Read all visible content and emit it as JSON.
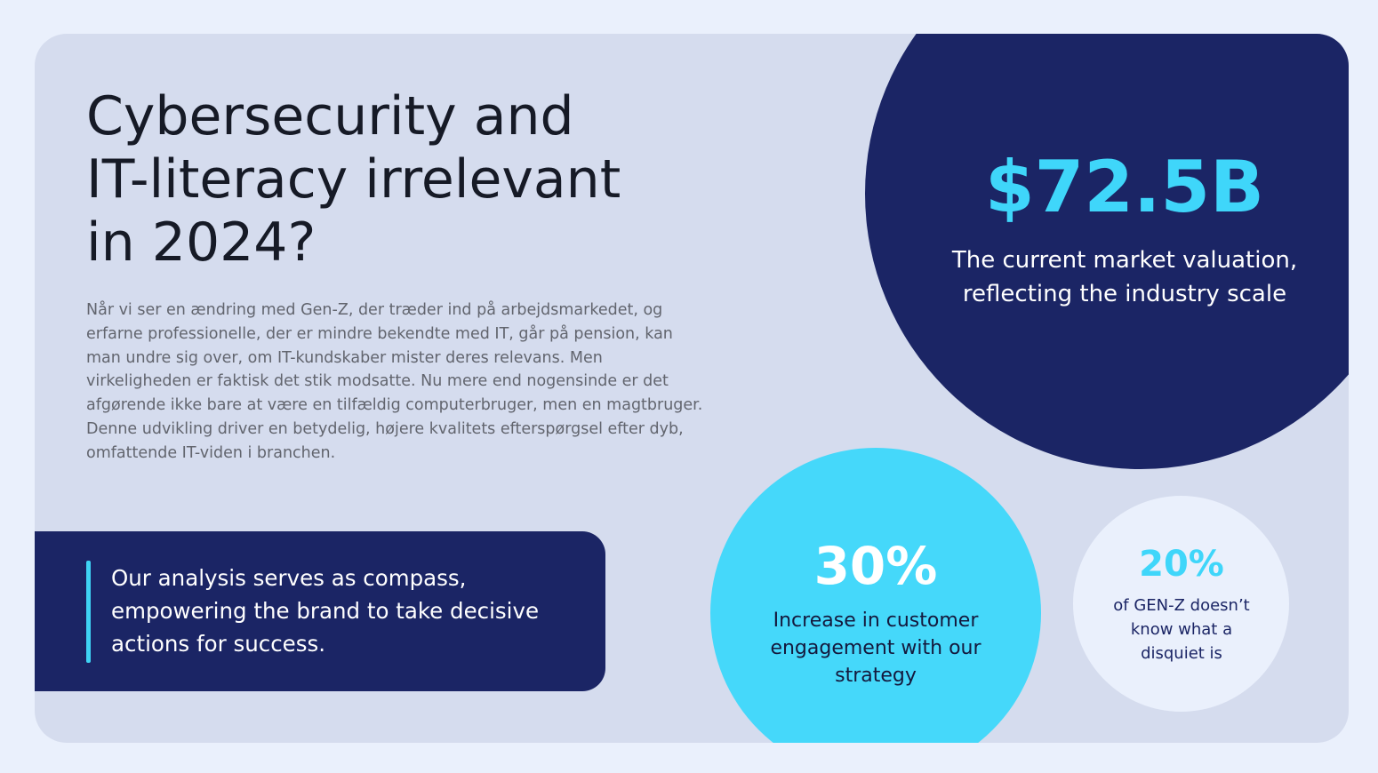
{
  "slide": {
    "title": "Cybersecurity and\nIT-literacy irrelevant\nin 2024?",
    "body": "Når vi ser en ændring med Gen-Z, der træder ind på arbejdsmarkedet, og erfarne professionelle, der er mindre bekendte med IT, går på pension, kan man undre sig over, om IT-kundskaber mister deres relevans. Men virkeligheden er faktisk det stik modsatte. Nu mere end nogensinde er det afgørende ikke bare at være en tilfældig computerbruger, men en magtbruger. Denne udvikling driver en betydelig, højere kvalitets efterspørgsel efter dyb, omfattende IT-viden i branchen.",
    "quote": "Our analysis serves as compass, empowering the brand to take decisive actions for success."
  },
  "stats": {
    "market": {
      "value": "$72.5B",
      "description": "The current market valuation, reflecting the industry scale"
    },
    "engagement": {
      "value": "30%",
      "description": "Increase in customer engagement with our strategy"
    },
    "genz": {
      "value": "20%",
      "description": "of GEN-Z doesn’t know what a disquiet is"
    }
  },
  "colors": {
    "background": "#eaf0fc",
    "card": "#d5dcee",
    "navy": "#1b2565",
    "cyan": "#45d8fa",
    "accent_text": "#3fd6fa"
  }
}
